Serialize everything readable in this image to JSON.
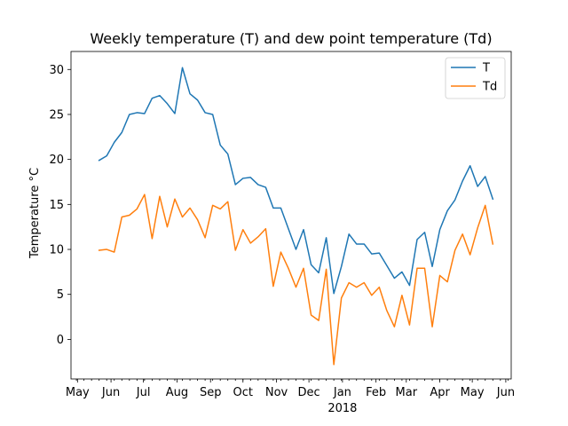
{
  "chart_data": {
    "type": "line",
    "title": "Weekly temperature (T) and dew point temperature (Td)",
    "xlabel": "",
    "ylabel": "Temperature °C",
    "x_axis": {
      "type": "date",
      "range": [
        "2017-04-25",
        "2018-06-06"
      ],
      "ticks": [
        {
          "date": "2017-05-01",
          "label": "May"
        },
        {
          "date": "2017-06-01",
          "label": "Jun"
        },
        {
          "date": "2017-07-01",
          "label": "Jul"
        },
        {
          "date": "2017-08-01",
          "label": "Aug"
        },
        {
          "date": "2017-09-01",
          "label": "Sep"
        },
        {
          "date": "2017-10-01",
          "label": "Oct"
        },
        {
          "date": "2017-11-01",
          "label": "Nov"
        },
        {
          "date": "2017-12-01",
          "label": "Dec"
        },
        {
          "date": "2018-01-01",
          "label": "Jan"
        },
        {
          "date": "2018-02-01",
          "label": "Feb"
        },
        {
          "date": "2018-03-01",
          "label": "Mar"
        },
        {
          "date": "2018-04-01",
          "label": "Apr"
        },
        {
          "date": "2018-05-01",
          "label": "May"
        },
        {
          "date": "2018-06-01",
          "label": "Jun"
        }
      ],
      "year_label": {
        "date": "2018-01-01",
        "label": "2018"
      }
    },
    "ylim": [
      -4.4,
      32.0
    ],
    "yticks": [
      0,
      5,
      10,
      15,
      20,
      25,
      30
    ],
    "grid": false,
    "legend_position": "top-right",
    "x": [
      "2017-05-21",
      "2017-05-28",
      "2017-06-04",
      "2017-06-11",
      "2017-06-18",
      "2017-06-25",
      "2017-07-02",
      "2017-07-09",
      "2017-07-16",
      "2017-07-23",
      "2017-07-30",
      "2017-08-06",
      "2017-08-13",
      "2017-08-20",
      "2017-08-27",
      "2017-09-03",
      "2017-09-10",
      "2017-09-17",
      "2017-09-24",
      "2017-10-01",
      "2017-10-08",
      "2017-10-15",
      "2017-10-22",
      "2017-10-29",
      "2017-11-05",
      "2017-11-12",
      "2017-11-19",
      "2017-11-26",
      "2017-12-03",
      "2017-12-10",
      "2017-12-17",
      "2017-12-24",
      "2017-12-31",
      "2018-01-07",
      "2018-01-14",
      "2018-01-21",
      "2018-01-28",
      "2018-02-04",
      "2018-02-11",
      "2018-02-18",
      "2018-02-25",
      "2018-03-04",
      "2018-03-11",
      "2018-03-18",
      "2018-03-25",
      "2018-04-01",
      "2018-04-08",
      "2018-04-15",
      "2018-04-22",
      "2018-04-29",
      "2018-05-06",
      "2018-05-13",
      "2018-05-20"
    ],
    "series": [
      {
        "name": "T",
        "color": "#1f77b4",
        "values": [
          19.9,
          20.4,
          21.9,
          23.0,
          25.0,
          25.2,
          25.1,
          26.8,
          27.1,
          26.2,
          25.1,
          30.2,
          27.3,
          26.6,
          25.2,
          25.0,
          21.6,
          20.6,
          17.2,
          17.9,
          18.0,
          17.2,
          16.9,
          14.6,
          14.6,
          12.3,
          10.0,
          12.2,
          8.3,
          7.4,
          11.3,
          5.1,
          8.1,
          11.7,
          10.6,
          10.6,
          9.5,
          9.6,
          8.2,
          6.8,
          7.5,
          6.0,
          11.1,
          11.9,
          8.1,
          12.2,
          14.3,
          15.5,
          17.6,
          19.3,
          17.0,
          18.1,
          15.6
        ]
      },
      {
        "name": "Td",
        "color": "#ff7f0e",
        "values": [
          9.9,
          10.0,
          9.7,
          13.6,
          13.8,
          14.5,
          16.1,
          11.2,
          15.9,
          12.5,
          15.6,
          13.6,
          14.6,
          13.3,
          11.3,
          14.9,
          14.5,
          15.3,
          9.9,
          12.2,
          10.7,
          11.4,
          12.3,
          5.9,
          9.7,
          7.9,
          5.8,
          7.9,
          2.7,
          2.1,
          7.8,
          -2.8,
          4.6,
          6.3,
          5.8,
          6.3,
          4.9,
          5.8,
          3.2,
          1.4,
          4.9,
          1.6,
          7.9,
          7.9,
          1.4,
          7.1,
          6.4,
          9.9,
          11.7,
          9.4,
          12.4,
          14.9,
          10.6
        ]
      }
    ]
  }
}
